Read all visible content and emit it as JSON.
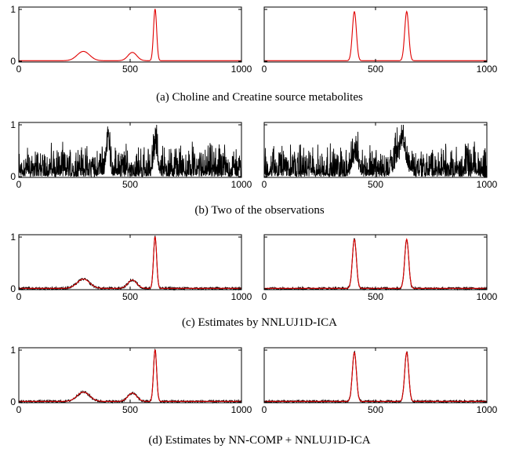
{
  "captions": [
    "(a) Choline and Creatine source metabolites",
    "(b) Two of the observations",
    "(c) Estimates by NNLUJ1D-ICA",
    "(d) Estimates by NN-COMP + NNLUJ1D-ICA"
  ],
  "colors": {
    "source": "#e00000",
    "observation": "#000000",
    "estimate": "#000000"
  },
  "chart_data": [
    {
      "id": "a-left",
      "type": "line",
      "row": 0,
      "col": 0,
      "xlim": [
        0,
        1000
      ],
      "ylim": [
        0,
        1
      ],
      "xticks": [
        "0",
        "500",
        "1000"
      ],
      "yticks": [
        "0",
        "1"
      ],
      "series": [
        {
          "style": "source",
          "baseline": 0.01,
          "peaks": [
            {
              "x": 290,
              "height": 0.18,
              "width": 28
            },
            {
              "x": 510,
              "height": 0.16,
              "width": 20
            },
            {
              "x": 612,
              "height": 1.0,
              "width": 7
            }
          ]
        }
      ]
    },
    {
      "id": "a-right",
      "type": "line",
      "row": 0,
      "col": 1,
      "xlim": [
        0,
        1000
      ],
      "ylim": [
        0,
        1
      ],
      "xticks": [
        "0",
        "500",
        "1000"
      ],
      "yticks": [],
      "series": [
        {
          "style": "source",
          "baseline": 0.01,
          "peaks": [
            {
              "x": 405,
              "height": 0.95,
              "width": 9
            },
            {
              "x": 640,
              "height": 0.95,
              "width": 9
            }
          ]
        }
      ]
    },
    {
      "id": "b-left",
      "type": "line",
      "row": 1,
      "col": 0,
      "xlim": [
        0,
        1000
      ],
      "ylim": [
        0,
        1
      ],
      "xticks": [
        "0",
        "500",
        "1000"
      ],
      "yticks": [
        "0",
        "1"
      ],
      "series": [
        {
          "style": "observation",
          "noise": 0.32,
          "peaks": [
            {
              "x": 400,
              "height": 0.7,
              "width": 8
            },
            {
              "x": 615,
              "height": 0.55,
              "width": 8
            }
          ]
        }
      ]
    },
    {
      "id": "b-right",
      "type": "line",
      "row": 1,
      "col": 1,
      "xlim": [
        0,
        1000
      ],
      "ylim": [
        0,
        1
      ],
      "xticks": [
        "0",
        "500",
        "1000"
      ],
      "yticks": [],
      "series": [
        {
          "style": "observation",
          "noise": 0.32,
          "peaks": [
            {
              "x": 410,
              "height": 0.4,
              "width": 12
            },
            {
              "x": 615,
              "height": 0.55,
              "width": 20
            }
          ]
        }
      ]
    },
    {
      "id": "c-left",
      "type": "line",
      "row": 2,
      "col": 0,
      "xlim": [
        0,
        1000
      ],
      "ylim": [
        0,
        1
      ],
      "xticks": [
        "0",
        "500",
        "1000"
      ],
      "yticks": [
        "0",
        "1"
      ],
      "series": [
        {
          "style": "estimate",
          "noise": 0.04,
          "baseline": 0.01,
          "peaks": [
            {
              "x": 290,
              "height": 0.18,
              "width": 28
            },
            {
              "x": 510,
              "height": 0.16,
              "width": 20
            },
            {
              "x": 612,
              "height": 1.0,
              "width": 7
            }
          ]
        },
        {
          "style": "source",
          "baseline": 0.01,
          "peaks": [
            {
              "x": 290,
              "height": 0.18,
              "width": 28
            },
            {
              "x": 510,
              "height": 0.16,
              "width": 20
            },
            {
              "x": 612,
              "height": 1.0,
              "width": 7
            }
          ]
        }
      ]
    },
    {
      "id": "c-right",
      "type": "line",
      "row": 2,
      "col": 1,
      "xlim": [
        0,
        1000
      ],
      "ylim": [
        0,
        1
      ],
      "xticks": [
        "0",
        "500",
        "1000"
      ],
      "yticks": [],
      "series": [
        {
          "style": "estimate",
          "noise": 0.04,
          "baseline": 0.01,
          "peaks": [
            {
              "x": 405,
              "height": 0.95,
              "width": 9
            },
            {
              "x": 640,
              "height": 0.95,
              "width": 9
            }
          ]
        },
        {
          "style": "source",
          "baseline": 0.01,
          "peaks": [
            {
              "x": 405,
              "height": 0.95,
              "width": 9
            },
            {
              "x": 640,
              "height": 0.95,
              "width": 9
            }
          ]
        }
      ]
    },
    {
      "id": "d-left",
      "type": "line",
      "row": 3,
      "col": 0,
      "xlim": [
        0,
        1000
      ],
      "ylim": [
        0,
        1
      ],
      "xticks": [
        "0",
        "500",
        "1000"
      ],
      "yticks": [
        "0",
        "1"
      ],
      "series": [
        {
          "style": "estimate",
          "noise": 0.04,
          "baseline": 0.01,
          "peaks": [
            {
              "x": 290,
              "height": 0.18,
              "width": 28
            },
            {
              "x": 510,
              "height": 0.16,
              "width": 20
            },
            {
              "x": 612,
              "height": 1.0,
              "width": 7
            }
          ]
        },
        {
          "style": "source",
          "baseline": 0.01,
          "peaks": [
            {
              "x": 290,
              "height": 0.18,
              "width": 28
            },
            {
              "x": 510,
              "height": 0.16,
              "width": 20
            },
            {
              "x": 612,
              "height": 1.0,
              "width": 7
            }
          ]
        }
      ]
    },
    {
      "id": "d-right",
      "type": "line",
      "row": 3,
      "col": 1,
      "xlim": [
        0,
        1000
      ],
      "ylim": [
        0,
        1
      ],
      "xticks": [
        "0",
        "500",
        "1000"
      ],
      "yticks": [],
      "series": [
        {
          "style": "estimate",
          "noise": 0.04,
          "baseline": 0.01,
          "peaks": [
            {
              "x": 405,
              "height": 0.95,
              "width": 9
            },
            {
              "x": 640,
              "height": 0.95,
              "width": 9
            }
          ]
        },
        {
          "style": "source",
          "baseline": 0.01,
          "peaks": [
            {
              "x": 405,
              "height": 0.95,
              "width": 9
            },
            {
              "x": 640,
              "height": 0.95,
              "width": 9
            }
          ]
        }
      ]
    }
  ]
}
